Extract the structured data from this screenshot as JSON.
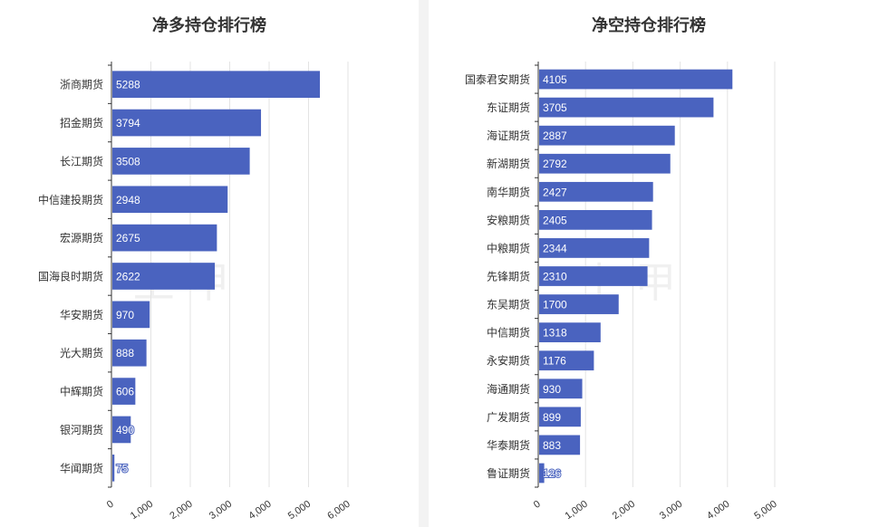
{
  "colors": {
    "bar": "#4a63bf",
    "grid": "#e3e3e3",
    "axis": "#333333",
    "label": "#333333",
    "value": "#ffffff"
  },
  "watermark": {
    "left_text": "上 甲",
    "right_text": "上 甲"
  },
  "chart_data": [
    {
      "type": "bar",
      "orientation": "horizontal",
      "title": "净多持仓排行榜",
      "categories": [
        "浙商期货",
        "招金期货",
        "长江期货",
        "中信建投期货",
        "宏源期货",
        "国海良时期货",
        "华安期货",
        "光大期货",
        "中辉期货",
        "银河期货",
        "华闻期货"
      ],
      "values": [
        5288,
        3794,
        3508,
        2948,
        2675,
        2622,
        970,
        888,
        606,
        490,
        75
      ],
      "xlim": [
        0,
        6000
      ],
      "xticks": [
        "0",
        "1,000",
        "2,000",
        "3,000",
        "4,000",
        "5,000",
        "6,000"
      ],
      "grid": true
    },
    {
      "type": "bar",
      "orientation": "horizontal",
      "title": "净空持仓排行榜",
      "categories": [
        "国泰君安期货",
        "东证期货",
        "海证期货",
        "新湖期货",
        "南华期货",
        "安粮期货",
        "中粮期货",
        "先锋期货",
        "东吴期货",
        "中信期货",
        "永安期货",
        "海通期货",
        "广发期货",
        "华泰期货",
        "鲁证期货"
      ],
      "values": [
        4105,
        3705,
        2887,
        2792,
        2427,
        2405,
        2344,
        2310,
        1700,
        1318,
        1176,
        930,
        899,
        883,
        126
      ],
      "xlim": [
        0,
        5000
      ],
      "xticks": [
        "0",
        "1,000",
        "2,000",
        "3,000",
        "4,000",
        "5,000"
      ],
      "grid": true
    }
  ]
}
